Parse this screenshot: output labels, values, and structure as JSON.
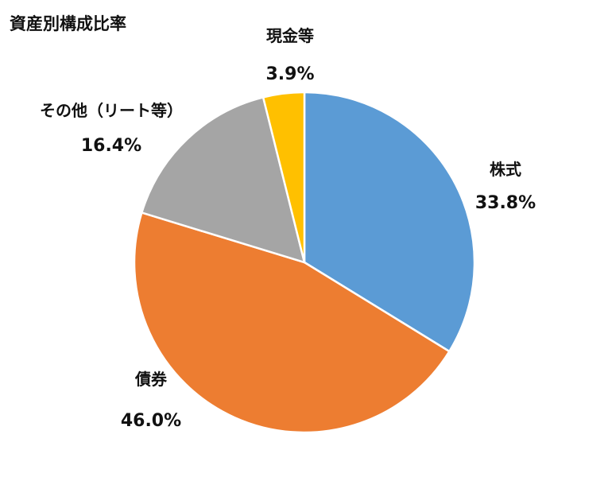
{
  "chart_data": {
    "type": "pie",
    "title": "資産別構成比率",
    "categories": [
      "株式",
      "債券",
      "その他（リート等）",
      "現金等"
    ],
    "values": [
      33.8,
      46.0,
      16.4,
      3.9
    ],
    "value_labels": [
      "33.8%",
      "46.0%",
      "16.4%",
      "3.9%"
    ],
    "colors": [
      "#5B9BD5",
      "#ED7D31",
      "#A5A5A5",
      "#FFC000"
    ],
    "start": "12 o'clock",
    "direction": "clockwise",
    "legend": "none",
    "data_labels": "outside"
  }
}
